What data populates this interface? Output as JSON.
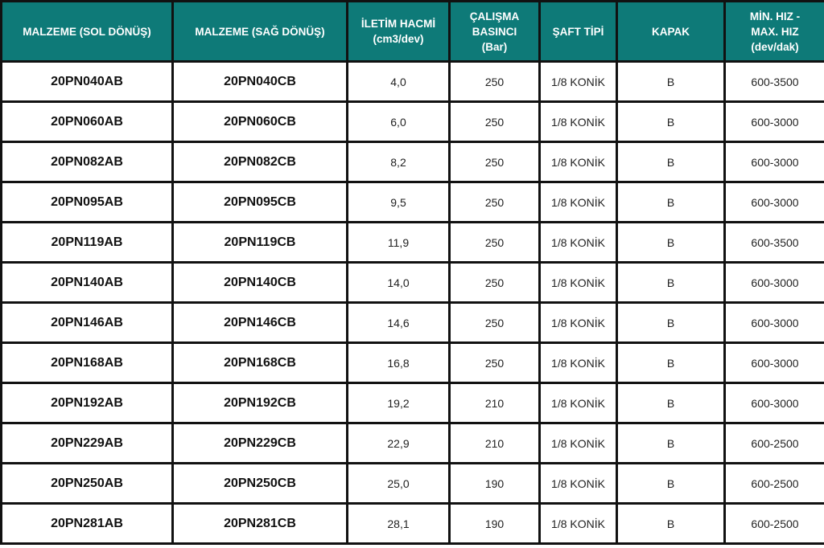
{
  "headers": [
    "MALZEME (SOL DÖNÜŞ)",
    "MALZEME  (SAĞ DÖNÜŞ)",
    "İLETİM HACMİ\n(cm3/dev)",
    "ÇALIŞMA\nBASINCI\n(Bar)",
    "ŞAFT TİPİ",
    "KAPAK",
    "MİN. HIZ -\nMAX. HIZ\n(dev/dak)"
  ],
  "colors": {
    "header_bg": "#0e7a78",
    "header_text": "#ffffff",
    "border": "#111111"
  },
  "rows": [
    [
      "20PN040AB",
      "20PN040CB",
      "4,0",
      "250",
      "1/8 KONİK",
      "B",
      "600-3500"
    ],
    [
      "20PN060AB",
      "20PN060CB",
      "6,0",
      "250",
      "1/8 KONİK",
      "B",
      "600-3000"
    ],
    [
      "20PN082AB",
      "20PN082CB",
      "8,2",
      "250",
      "1/8 KONİK",
      "B",
      "600-3000"
    ],
    [
      "20PN095AB",
      "20PN095CB",
      "9,5",
      "250",
      "1/8 KONİK",
      "B",
      "600-3000"
    ],
    [
      "20PN119AB",
      "20PN119CB",
      "11,9",
      "250",
      "1/8 KONİK",
      "B",
      "600-3500"
    ],
    [
      "20PN140AB",
      "20PN140CB",
      "14,0",
      "250",
      "1/8 KONİK",
      "B",
      "600-3000"
    ],
    [
      "20PN146AB",
      "20PN146CB",
      "14,6",
      "250",
      "1/8 KONİK",
      "B",
      "600-3000"
    ],
    [
      "20PN168AB",
      "20PN168CB",
      "16,8",
      "250",
      "1/8 KONİK",
      "B",
      "600-3000"
    ],
    [
      "20PN192AB",
      "20PN192CB",
      "19,2",
      "210",
      "1/8 KONİK",
      "B",
      "600-3000"
    ],
    [
      "20PN229AB",
      "20PN229CB",
      "22,9",
      "210",
      "1/8 KONİK",
      "B",
      "600-2500"
    ],
    [
      "20PN250AB",
      "20PN250CB",
      "25,0",
      "190",
      "1/8 KONİK",
      "B",
      "600-2500"
    ],
    [
      "20PN281AB",
      "20PN281CB",
      "28,1",
      "190",
      "1/8 KONİK",
      "B",
      "600-2500"
    ]
  ]
}
